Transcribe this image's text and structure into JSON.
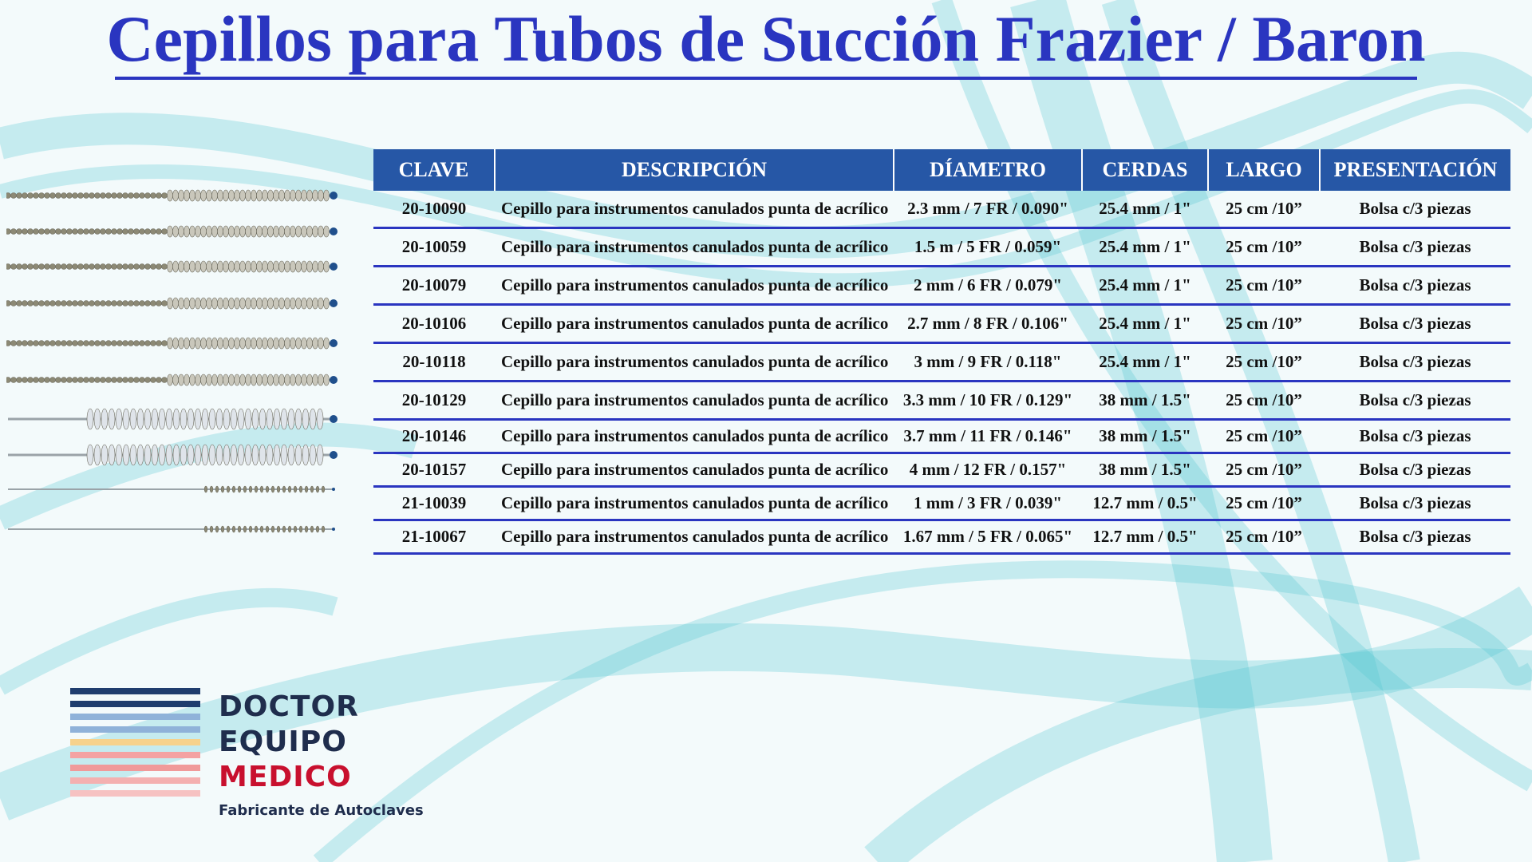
{
  "title": "Cepillos para Tubos de Succión Frazier / Baron",
  "colors": {
    "title": "#2a35c0",
    "header_bg": "#2657a6",
    "row_rule": "#2a35c0",
    "logo_navy": "#1f2d4d",
    "logo_red": "#c8102e"
  },
  "table": {
    "headers": [
      "CLAVE",
      "DESCRIPCIÓN",
      "DÍAMETRO",
      "CERDAS",
      "LARGO",
      "PRESENTACIÓN"
    ],
    "rows": [
      {
        "clave": "20-10090",
        "descripcion": "Cepillo para instrumentos canulados punta de acrílico",
        "diametro": "2.3 mm / 7 FR / 0.090\"",
        "cerdas": "25.4 mm / 1\"",
        "largo": "25 cm /10”",
        "presentacion": "Bolsa c/3 piezas"
      },
      {
        "clave": "20-10059",
        "descripcion": "Cepillo para instrumentos canulados punta de acrílico",
        "diametro": "1.5 m / 5 FR / 0.059\"",
        "cerdas": "25.4 mm / 1\"",
        "largo": "25 cm /10”",
        "presentacion": "Bolsa c/3 piezas"
      },
      {
        "clave": "20-10079",
        "descripcion": "Cepillo para instrumentos canulados punta de acrílico",
        "diametro": "2 mm / 6 FR / 0.079\"",
        "cerdas": "25.4 mm / 1\"",
        "largo": "25 cm /10”",
        "presentacion": "Bolsa c/3 piezas"
      },
      {
        "clave": "20-10106",
        "descripcion": "Cepillo para instrumentos canulados punta de acrílico",
        "diametro": "2.7 mm / 8 FR / 0.106\"",
        "cerdas": "25.4 mm / 1\"",
        "largo": "25 cm /10”",
        "presentacion": "Bolsa c/3 piezas"
      },
      {
        "clave": "20-10118",
        "descripcion": "Cepillo para instrumentos canulados punta de acrílico",
        "diametro": "3 mm / 9 FR / 0.118\"",
        "cerdas": "25.4 mm / 1\"",
        "largo": "25 cm /10”",
        "presentacion": "Bolsa c/3 piezas"
      },
      {
        "clave": "20-10129",
        "descripcion": "Cepillo para instrumentos canulados punta de acrílico",
        "diametro": "3.3 mm / 10 FR / 0.129\"",
        "cerdas": "38 mm / 1.5\"",
        "largo": "25 cm /10”",
        "presentacion": "Bolsa c/3 piezas"
      },
      {
        "clave": "20-10146",
        "descripcion": "Cepillo para instrumentos canulados punta de acrílico",
        "diametro": "3.7 mm / 11 FR / 0.146\"",
        "cerdas": "38 mm / 1.5\"",
        "largo": "25 cm /10”",
        "presentacion": "Bolsa c/3 piezas"
      },
      {
        "clave": "20-10157",
        "descripcion": "Cepillo para instrumentos canulados punta de acrílico",
        "diametro": "4 mm / 12 FR / 0.157\"",
        "cerdas": "38 mm / 1.5\"",
        "largo": "25 cm /10”",
        "presentacion": "Bolsa c/3 piezas"
      },
      {
        "clave": "21-10039",
        "descripcion": "Cepillo para instrumentos canulados punta de acrílico",
        "diametro": "1 mm / 3 FR / 0.039\"",
        "cerdas": "12.7 mm / 0.5\"",
        "largo": "25 cm /10”",
        "presentacion": "Bolsa c/3 piezas"
      },
      {
        "clave": "21-10067",
        "descripcion": "Cepillo para instrumentos canulados punta de acrílico",
        "diametro": "1.67 mm / 5 FR / 0.065\"",
        "cerdas": "12.7 mm / 0.5\"",
        "largo": "25 cm /10”",
        "presentacion": "Bolsa c/3 piezas"
      }
    ]
  },
  "logo": {
    "line1": "DOCTOR",
    "line2": "EQUIPO",
    "line3": "MEDICO",
    "tagline": "Fabricante de Autoclaves"
  }
}
